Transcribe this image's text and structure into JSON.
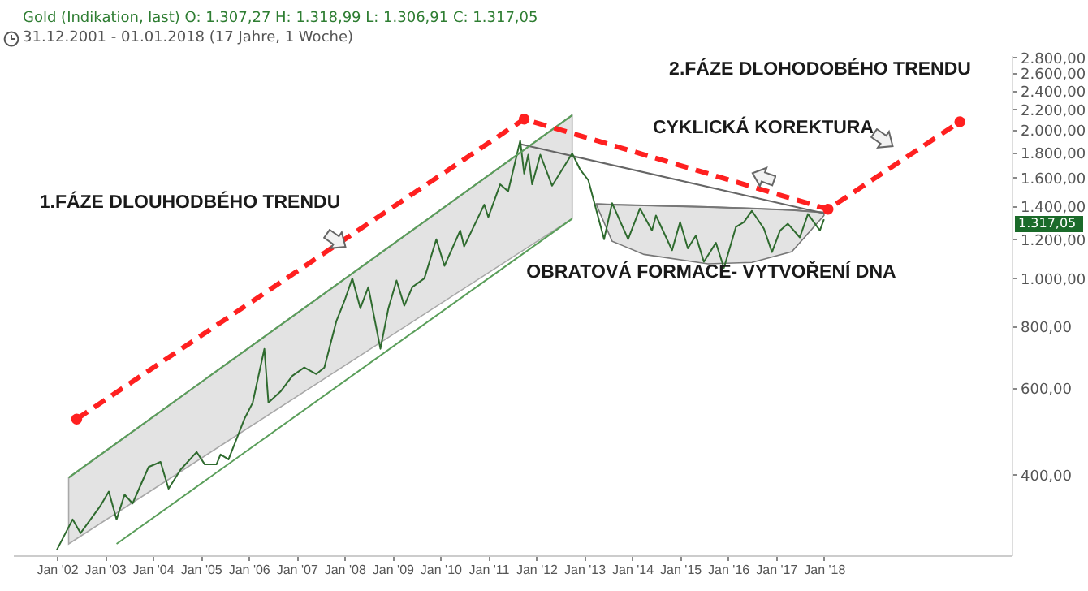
{
  "chart_data": {
    "type": "line",
    "title": "Gold (Indikation, last)  O: 1.307,27  H: 1.318,99  L: 1.306,91  C: 1.317,05",
    "subtitle": "31.12.2001 - 01.01.2018   (17 Jahre, 1 Woche)",
    "log": "y",
    "xlim": [
      "2001-02",
      "2021-12"
    ],
    "xticks": [
      {
        "value": "2002-01",
        "label": "Jan '02"
      },
      {
        "value": "2003-01",
        "label": "Jan '03"
      },
      {
        "value": "2004-01",
        "label": "Jan '04"
      },
      {
        "value": "2005-01",
        "label": "Jan '05"
      },
      {
        "value": "2006-01",
        "label": "Jan '06"
      },
      {
        "value": "2007-01",
        "label": "Jan '07"
      },
      {
        "value": "2008-01",
        "label": "Jan '08"
      },
      {
        "value": "2009-01",
        "label": "Jan '09"
      },
      {
        "value": "2010-01",
        "label": "Jan '10"
      },
      {
        "value": "2011-01",
        "label": "Jan '11"
      },
      {
        "value": "2012-01",
        "label": "Jan '12"
      },
      {
        "value": "2013-01",
        "label": "Jan '13"
      },
      {
        "value": "2014-01",
        "label": "Jan '14"
      },
      {
        "value": "2015-01",
        "label": "Jan '15"
      },
      {
        "value": "2016-01",
        "label": "Jan '16"
      },
      {
        "value": "2017-01",
        "label": "Jan '17"
      },
      {
        "value": "2018-01",
        "label": "Jan '18"
      }
    ],
    "ylim": [
      275,
      2830
    ],
    "yticks": [
      {
        "value": 400,
        "label": "400,00"
      },
      {
        "value": 600,
        "label": "600,00"
      },
      {
        "value": 800,
        "label": "800,00"
      },
      {
        "value": 1000,
        "label": "1.000,00"
      },
      {
        "value": 1200,
        "label": "1.200,00"
      },
      {
        "value": 1400,
        "label": "1.400,00"
      },
      {
        "value": 1600,
        "label": "1.600,00"
      },
      {
        "value": 1800,
        "label": "1.800,00"
      },
      {
        "value": 2000,
        "label": "2.000,00"
      },
      {
        "value": 2200,
        "label": "2.200,00"
      },
      {
        "value": 2400,
        "label": "2.400,00"
      },
      {
        "value": 2600,
        "label": "2.600,00"
      },
      {
        "value": 2800,
        "label": "2.800,00"
      }
    ],
    "series": [
      {
        "color": "#a8a8a8",
        "x": [
          "2002-04",
          "2012-10"
        ],
        "values": [
          395,
          2140
        ],
        "lower": [
          290,
          1321
        ],
        "upper": [
          395,
          2140
        ]
      },
      {
        "color": "#5a9e5a",
        "x": [
          "2003-04",
          "2012-10"
        ],
        "values": [
          290,
          1321
        ]
      },
      {
        "color": "#777777",
        "x": [
          "2013-04",
          "2013-08",
          "2014-04",
          "2015-08",
          "2016-07",
          "2017-05",
          "2018-01"
        ],
        "values": [
          1414,
          1410,
          1405,
          1395,
          1385,
          1375,
          1360
        ],
        "lower": [
          1414,
          1189,
          1118,
          1070,
          1077,
          1132,
          1340
        ],
        "upper": [
          1414,
          1410,
          1405,
          1395,
          1385,
          1375,
          1360
        ]
      },
      {
        "color": "#666666",
        "x": [
          "2011-09",
          "2018-01"
        ],
        "values": [
          1870,
          1354
        ]
      },
      {
        "color": "#2f6b2f",
        "x": [
          "2002-01",
          "2002-05",
          "2002-07",
          "2002-12",
          "2003-02",
          "2003-04",
          "2003-06",
          "2003-08",
          "2003-12",
          "2004-03",
          "2004-05",
          "2004-08",
          "2004-12",
          "2005-02",
          "2005-05",
          "2005-06",
          "2005-08",
          "2005-12",
          "2006-02",
          "2006-05",
          "2006-06",
          "2006-09",
          "2006-12",
          "2007-03",
          "2007-06",
          "2007-08",
          "2007-11",
          "2008-01",
          "2008-03",
          "2008-05",
          "2008-07",
          "2008-10",
          "2008-12",
          "2009-02",
          "2009-04",
          "2009-06",
          "2009-09",
          "2009-12",
          "2010-02",
          "2010-06",
          "2010-07",
          "2010-12",
          "2011-01",
          "2011-04",
          "2011-06",
          "2011-09",
          "2011-10",
          "2011-11",
          "2011-12",
          "2012-02",
          "2012-05",
          "2012-10",
          "2012-12",
          "2013-02",
          "2013-04",
          "2013-06",
          "2013-08",
          "2013-12",
          "2014-03",
          "2014-06",
          "2014-07",
          "2014-11",
          "2015-01",
          "2015-03",
          "2015-05",
          "2015-07",
          "2015-10",
          "2015-12",
          "2016-03",
          "2016-05",
          "2016-07",
          "2016-10",
          "2016-12",
          "2017-02",
          "2017-04",
          "2017-07",
          "2017-09",
          "2017-12",
          "2018-01"
        ],
        "values": [
          282,
          325,
          305,
          347,
          370,
          325,
          365,
          350,
          415,
          425,
          375,
          410,
          445,
          420,
          420,
          440,
          430,
          520,
          560,
          720,
          560,
          590,
          635,
          660,
          640,
          660,
          820,
          900,
          1000,
          870,
          960,
          720,
          870,
          990,
          880,
          960,
          1000,
          1200,
          1060,
          1250,
          1160,
          1410,
          1330,
          1550,
          1500,
          1900,
          1630,
          1780,
          1550,
          1780,
          1540,
          1790,
          1660,
          1580,
          1380,
          1200,
          1420,
          1200,
          1385,
          1250,
          1340,
          1140,
          1300,
          1150,
          1220,
          1080,
          1180,
          1050,
          1270,
          1300,
          1370,
          1260,
          1130,
          1250,
          1290,
          1210,
          1350,
          1250,
          1317.05
        ]
      },
      {
        "color": "#5a9e5a",
        "x": [
          "2002-04",
          "2012-10"
        ],
        "values": [
          395,
          2140
        ]
      },
      {
        "color": "#ff2020",
        "line_style": "dashed",
        "marker": "circle",
        "x": [
          "2002-06",
          "2011-10",
          "2018-02",
          "2020-11"
        ],
        "values": [
          519,
          2101,
          1380,
          2075
        ]
      }
    ],
    "annotations": [
      "1.FÁZE DLOUHODBÉHO TRENDU",
      "2.FÁZE DLOHODOBÉHO TRENDU",
      "CYKLICKÁ KOREKTURA",
      "OBRATOVÁ FORMACE- VYTVOŘENÍ DNA",
      "1.317,05"
    ]
  }
}
